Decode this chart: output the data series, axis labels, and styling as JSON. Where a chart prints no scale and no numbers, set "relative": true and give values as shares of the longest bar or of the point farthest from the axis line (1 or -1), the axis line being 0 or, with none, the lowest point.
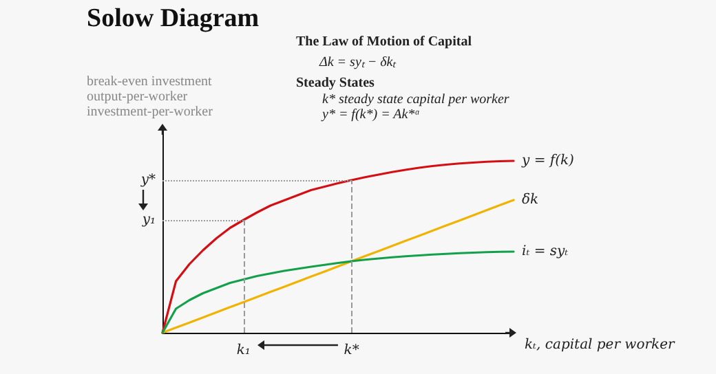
{
  "chart_data": {
    "type": "line",
    "title": "Solow Diagram",
    "relative": true,
    "annotations": [
      "The Law of Motion of Capital",
      "Δk = syₜ − δkₜ",
      "Steady States",
      "k*  steady state capital per worker",
      "y* = f(k*) = Ak*ᵅ",
      "break-even investment",
      "output-per-worker",
      "investment-per-worker"
    ],
    "xlabel": "kₜ, capital per worker",
    "categories": [
      null,
      null,
      null,
      null,
      null,
      null,
      "k₁",
      null,
      null,
      null,
      null,
      null,
      null,
      null,
      "k*",
      null,
      null,
      null,
      null,
      null,
      null,
      null,
      null,
      null,
      null,
      null,
      null
    ],
    "series": [
      {
        "name": "y = f(k)",
        "color": "#d40f14",
        "values": [
          0,
          0.3,
          0.4,
          0.48,
          0.55,
          0.61,
          0.656,
          0.7,
          0.74,
          0.77,
          0.8,
          0.83,
          0.85,
          0.87,
          0.888,
          0.905,
          0.92,
          0.935,
          0.948,
          0.96,
          0.97,
          0.978,
          0.985,
          0.99,
          0.995,
          0.998,
          1.0
        ]
      },
      {
        "name": "δk",
        "color": "#f0b400",
        "values": [
          0,
          0.03,
          0.059,
          0.089,
          0.119,
          0.149,
          0.178,
          0.208,
          0.238,
          0.267,
          0.297,
          0.327,
          0.356,
          0.386,
          0.416,
          0.446,
          0.475,
          0.505,
          0.535,
          0.564,
          0.594,
          0.624,
          0.653,
          0.683,
          0.713,
          0.743,
          0.772
        ]
      },
      {
        "name": "iₜ = syₜ",
        "color": "#12a04a",
        "values": [
          0,
          0.14,
          0.19,
          0.23,
          0.26,
          0.29,
          0.31,
          0.33,
          0.345,
          0.36,
          0.372,
          0.384,
          0.395,
          0.406,
          0.416,
          0.425,
          0.432,
          0.439,
          0.445,
          0.45,
          0.455,
          0.459,
          0.463,
          0.466,
          0.469,
          0.471,
          0.472
        ]
      }
    ],
    "ref_lines": [
      {
        "axis": "y",
        "value": 0.888,
        "label": "y*",
        "color": "#999999",
        "line_style": "dotted"
      },
      {
        "axis": "y",
        "value": 0.656,
        "label": "y₁",
        "color": "#999999",
        "line_style": "dotted"
      },
      {
        "axis": "x",
        "value": "k₁",
        "color": "#999999",
        "line_style": "dashed"
      },
      {
        "axis": "x",
        "value": "k*",
        "color": "#999999",
        "line_style": "dashed"
      }
    ],
    "grid": false,
    "legend": false,
    "marker": "none",
    "line_style": "solid"
  }
}
